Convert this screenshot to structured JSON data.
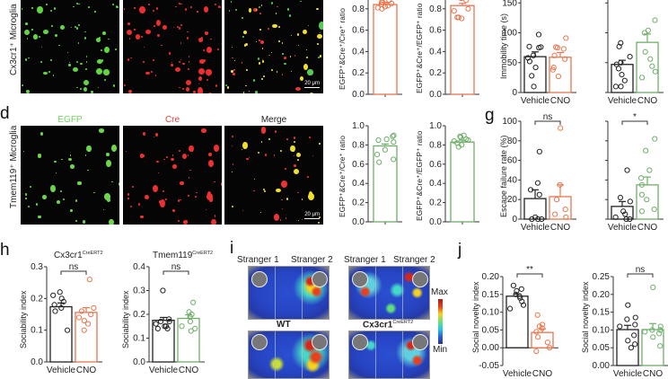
{
  "panels": {
    "c_images": {
      "row_label": "Cx3cr1⁺ Microglia",
      "scale_bar": "20 μm"
    },
    "d": {
      "letter": "d",
      "channels": [
        "EGFP",
        "Cre",
        "Merge"
      ],
      "channel_colors": [
        "#6fd35e",
        "#e0413a",
        "#222222"
      ],
      "row_label": "Tmem119⁺ Microglia",
      "scale_bar": "20 μm"
    },
    "g": {
      "letter": "g"
    },
    "h": {
      "letter": "h",
      "titles": [
        "Cx3cr1",
        "Tmem119"
      ],
      "superscript": "CreERT2"
    },
    "i": {
      "letter": "i",
      "stranger1": "Stranger 1",
      "stranger2": "Stranger 2",
      "group_wt": "WT",
      "group_cx": "Cx3cr1",
      "group_cx_sup": "CreERT2",
      "colorbar_max": "Max",
      "colorbar_min": "Min"
    },
    "j": {
      "letter": "j"
    }
  },
  "colors": {
    "vehicle": "#222222",
    "cno_cx3cr1": "#e8764f",
    "cno_tmem119": "#6fae6a"
  },
  "chart_data": [
    {
      "id": "c-ratio-1",
      "type": "bar",
      "categories": [
        ""
      ],
      "values": [
        0.84
      ],
      "points": [
        [
          0.92,
          0.88,
          0.86,
          0.85,
          0.84,
          0.83,
          0.82,
          0.81,
          0.8,
          0.86
        ]
      ],
      "ylabel": "EGFP⁺&Cre⁺/Cre⁺ ratio",
      "ytick_visible": [
        "0.8",
        "0.6",
        "0.4",
        "0.2",
        "0.0"
      ],
      "ylim": [
        0,
        1.0
      ],
      "color": "#e8764f"
    },
    {
      "id": "c-ratio-2",
      "type": "bar",
      "categories": [
        ""
      ],
      "values": [
        0.83
      ],
      "points": [
        [
          0.92,
          0.91,
          0.9,
          0.88,
          0.8,
          0.78,
          0.72,
          0.71,
          0.72,
          0.9
        ]
      ],
      "ylabel": "EGFP⁺&Cre⁺/EGFP⁺ ratio",
      "ytick_visible": [
        "0.8",
        "0.6",
        "0.4",
        "0.2",
        "0.0"
      ],
      "ylim": [
        0,
        1.0
      ],
      "color": "#e8764f"
    },
    {
      "id": "f-immobility",
      "type": "bar",
      "ylabel": "Immobility time (s)",
      "yticks": [
        "0",
        "50",
        "100",
        "150"
      ],
      "ylim": [
        0,
        200
      ],
      "groups": [
        {
          "categories": [
            "Vehicle",
            "CNO"
          ],
          "values": [
            60,
            59
          ],
          "sem": [
            8,
            8
          ],
          "points": [
            [
              97,
              77,
              76,
              75,
              62,
              58,
              52,
              42,
              28,
              10
            ],
            [
              91,
              76,
              75,
              73,
              62,
              56,
              42,
              27,
              38
            ]
          ],
          "colors": [
            "#222222",
            "#e8764f"
          ]
        },
        {
          "categories": [
            "Vehicle",
            "CNO"
          ],
          "values": [
            47,
            84
          ],
          "sem": [
            7,
            14
          ],
          "points": [
            [
              83,
              77,
              60,
              50,
              47,
              30,
              40,
              20,
              10,
              10
            ],
            [
              180,
              121,
              104,
              100,
              68,
              56,
              44,
              35,
              25
            ]
          ],
          "colors": [
            "#222222",
            "#6fae6a"
          ]
        }
      ]
    },
    {
      "id": "d-ratio-1",
      "type": "bar",
      "categories": [
        ""
      ],
      "values": [
        0.79
      ],
      "points": [
        [
          0.9,
          0.89,
          0.86,
          0.85,
          0.83,
          0.75,
          0.7,
          0.65,
          0.62
        ]
      ],
      "ylabel": "EGFP⁺&Cre⁺/Cre⁺ ratio",
      "yticks": [
        "0.0",
        "0.2",
        "0.4",
        "0.6",
        "0.8",
        "1.0"
      ],
      "ylim": [
        0,
        1.0
      ],
      "color": "#6fae6a"
    },
    {
      "id": "d-ratio-2",
      "type": "bar",
      "categories": [
        ""
      ],
      "values": [
        0.83
      ],
      "points": [
        [
          0.9,
          0.89,
          0.88,
          0.86,
          0.85,
          0.84,
          0.82,
          0.8,
          0.78
        ]
      ],
      "ylabel": "EGFP⁺&Cre⁺/EGFP⁺ ratio",
      "yticks": [
        "0.0",
        "0.2",
        "0.4",
        "0.6",
        "0.8",
        "1.0"
      ],
      "ylim": [
        0,
        1.0
      ],
      "color": "#6fae6a"
    },
    {
      "id": "g-escape",
      "type": "bar",
      "ylabel": "Escape failure rate (%)",
      "yticks": [
        "0",
        "20",
        "40",
        "60",
        "80",
        "100"
      ],
      "ylim": [
        0,
        100
      ],
      "groups": [
        {
          "categories": [
            "Vehicle",
            "CNO"
          ],
          "values": [
            21,
            23
          ],
          "sem": [
            9,
            12
          ],
          "significance": "ns",
          "points": [
            [
              69,
              37,
              30,
              25,
              0,
              0,
              2,
              0
            ],
            [
              93,
              35,
              20,
              10,
              5,
              2
            ]
          ],
          "colors": [
            "#222222",
            "#e8764f"
          ]
        },
        {
          "categories": [
            "Vehicle",
            "CNO"
          ],
          "values": [
            13,
            35
          ],
          "sem": [
            5,
            8
          ],
          "significance": "*",
          "points": [
            [
              50,
              22,
              18,
              8,
              5,
              2,
              0,
              0
            ],
            [
              82,
              70,
              50,
              42,
              35,
              25,
              20,
              10,
              8
            ]
          ],
          "colors": [
            "#222222",
            "#6fae6a"
          ]
        }
      ]
    },
    {
      "id": "h-sociability",
      "type": "bar",
      "ylabel": "Sociability index",
      "groups": [
        {
          "title": "Cx3cr1 CreERT2",
          "categories": [
            "Vehicle",
            "CNO"
          ],
          "values": [
            0.174,
            0.156
          ],
          "sem": [
            0.012,
            0.015
          ],
          "significance": "ns",
          "yticks": [
            "0.0",
            "0.1",
            "0.2",
            "0.3"
          ],
          "ylim": [
            0,
            0.3
          ],
          "points": [
            [
              0.22,
              0.21,
              0.2,
              0.19,
              0.18,
              0.17,
              0.16,
              0.1
            ],
            [
              0.26,
              0.17,
              0.16,
              0.15,
              0.14,
              0.13,
              0.12,
              0.1
            ]
          ],
          "colors": [
            "#222222",
            "#e8764f"
          ]
        },
        {
          "title": "Tmem119 CreERT2",
          "categories": [
            "Vehicle",
            "CNO"
          ],
          "values": [
            0.175,
            0.183
          ],
          "sem": [
            0.012,
            0.015
          ],
          "significance": "ns",
          "yticks": [
            "0.0",
            "0.1",
            "0.2",
            "0.3",
            "0.4"
          ],
          "ylim": [
            0,
            0.4
          ],
          "points": [
            [
              0.3,
              0.18,
              0.17,
              0.17,
              0.16,
              0.15,
              0.15,
              0.14,
              0.14
            ],
            [
              0.25,
              0.21,
              0.2,
              0.19,
              0.17,
              0.15,
              0.14,
              0.13
            ]
          ],
          "colors": [
            "#222222",
            "#6fae6a"
          ]
        }
      ]
    },
    {
      "id": "j-social-novelty",
      "type": "bar",
      "ylabel": "Social novelty index",
      "groups": [
        {
          "categories": [
            "Vehicle",
            "CNO"
          ],
          "values": [
            0.145,
            0.043
          ],
          "sem": [
            0.006,
            0.01
          ],
          "significance": "**",
          "yticks": [
            "-0.05",
            "0.00",
            "0.05",
            "0.10",
            "0.15",
            "0.20"
          ],
          "ylim": [
            -0.05,
            0.2
          ],
          "points": [
            [
              0.175,
              0.165,
              0.16,
              0.15,
              0.145,
              0.14,
              0.13,
              0.12,
              0.11
            ],
            [
              0.092,
              0.065,
              0.06,
              0.055,
              0.045,
              0.03,
              0.015,
              0.0,
              -0.01
            ]
          ],
          "colors": [
            "#222222",
            "#e8764f"
          ]
        },
        {
          "categories": [
            "Vehicle",
            "CNO"
          ],
          "values": [
            0.101,
            0.101
          ],
          "sem": [
            0.012,
            0.017
          ],
          "significance": "ns",
          "yticks": [
            "0.00",
            "0.05",
            "0.10",
            "0.15",
            "0.20",
            "0.25"
          ],
          "ylim": [
            0,
            0.25
          ],
          "points": [
            [
              0.17,
              0.135,
              0.13,
              0.115,
              0.11,
              0.085,
              0.07,
              0.06,
              0.05
            ],
            [
              0.22,
              0.11,
              0.1,
              0.1,
              0.095,
              0.09,
              0.08,
              0.055
            ]
          ],
          "colors": [
            "#222222",
            "#6fae6a"
          ]
        }
      ]
    }
  ]
}
